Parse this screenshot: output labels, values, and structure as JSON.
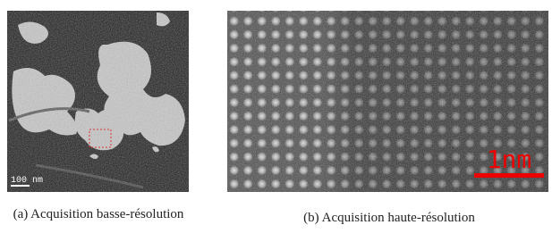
{
  "figures": [
    {
      "label": "(a)",
      "caption": "Acquisition basse-résolution",
      "scale_bar": "100 nm"
    },
    {
      "label": "(b)",
      "caption": "Acquisition haute-résolution",
      "scale_bar": "1nm"
    }
  ]
}
